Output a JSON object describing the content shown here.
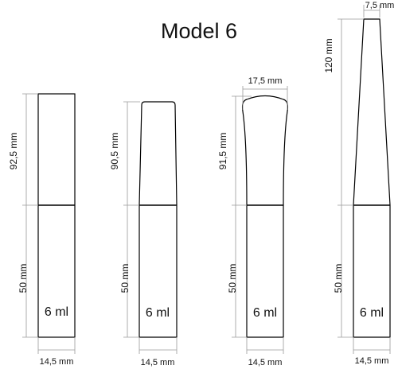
{
  "title": "Model 6",
  "models": [
    {
      "id": "m1",
      "top_height_label": "92,5 mm",
      "bottom_height_label": "50 mm",
      "width_label": "14,5 mm",
      "volume_label": "6 ml"
    },
    {
      "id": "m2",
      "top_height_label": "90,5 mm",
      "bottom_height_label": "50 mm",
      "width_label": "14,5 mm",
      "volume_label": "6 ml"
    },
    {
      "id": "m3",
      "top_height_label": "91,5 mm",
      "top_width_label": "17,5 mm",
      "bottom_height_label": "50 mm",
      "width_label": "14,5 mm",
      "volume_label": "6 ml"
    },
    {
      "id": "m4",
      "top_height_label": "120 mm",
      "top_width_label": "7,5 mm",
      "bottom_height_label": "50 mm",
      "width_label": "14,5 mm",
      "volume_label": "6 ml"
    }
  ],
  "colors": {
    "outline": "#000000",
    "dimension": "#9a9a9a",
    "text": "#111111"
  }
}
